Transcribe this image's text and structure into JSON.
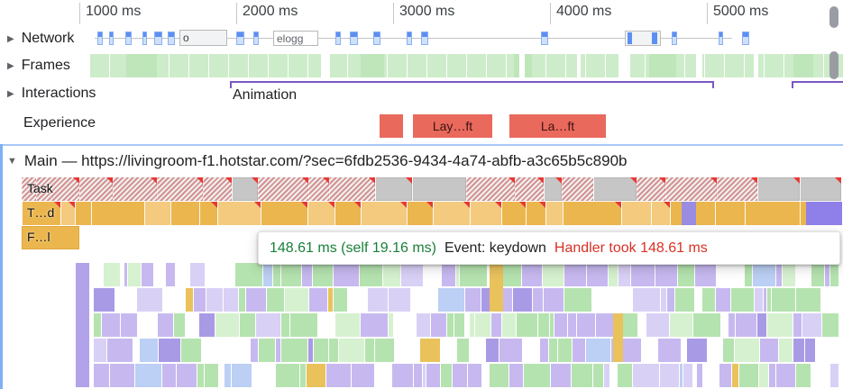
{
  "ruler": {
    "labels": [
      "1000 ms",
      "2000 ms",
      "3000 ms",
      "4000 ms",
      "5000 ms"
    ]
  },
  "lanes": {
    "network": {
      "label": "Network",
      "request_labels": [
        "o",
        "elogg"
      ]
    },
    "frames": {
      "label": "Frames"
    },
    "interactions": {
      "label": "Interactions",
      "annotation": "Animation"
    },
    "experience": {
      "label": "Experience",
      "badges": [
        "Lay…ft",
        "La…ft"
      ]
    }
  },
  "main": {
    "label": "Main — https://livingroom-f1.hotstar.com/?sec=6fdb2536-9434-4a74-abfb-a3c65b5c890b"
  },
  "flame": {
    "task_label": "Task",
    "timer_label": "T…d",
    "fn_label": "F…l"
  },
  "tooltip": {
    "timing": "148.61 ms (self 19.16 ms)",
    "event": "Event: keydown",
    "warning": "Handler took 148.61 ms"
  },
  "colors": {
    "accent_blue": "#7fb0f4",
    "frames_green": "#cdecca",
    "interaction_purple": "#7e57c2",
    "experience_red": "#e9695c",
    "task_gray": "#c6c6c6",
    "script_orange": "#ecb64f",
    "flame_purple": "#c7b9f0",
    "flame_green": "#b5e3af",
    "long_task_red": "#e53935",
    "tooltip_green": "#188038",
    "tooltip_red": "#d93025"
  }
}
